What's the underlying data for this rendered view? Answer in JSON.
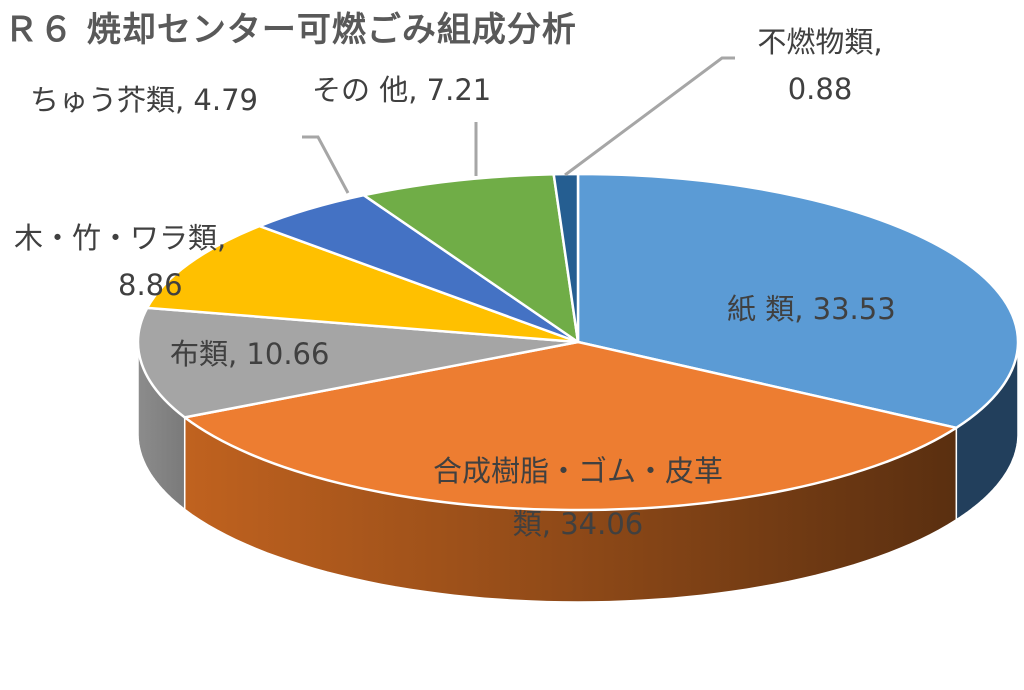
{
  "chart_data": {
    "type": "pie",
    "title": "Ｒ６ 焼却センター可燃ごみ組成分析",
    "style": "3d-pie",
    "start_angle_deg": 0,
    "direction": "clockwise",
    "categories": [
      "紙 類",
      "合成樹脂・ゴム・皮革類",
      "布類",
      "木・竹・ワラ類",
      "ちゅう芥類",
      "その他",
      "不燃物類"
    ],
    "values": [
      33.53,
      34.06,
      10.66,
      8.86,
      4.79,
      7.21,
      0.88
    ],
    "colors": [
      "#5B9BD5",
      "#ED7D31",
      "#A5A5A5",
      "#FFC000",
      "#4472C4",
      "#70AD47",
      "#255E91"
    ],
    "side_colors": [
      "#223F5C",
      "#6B3512",
      "#7F7F7F",
      "#9E7600",
      "#2A4679",
      "#456A2B",
      "#17375A"
    ],
    "data_labels": [
      {
        "line1": "紙 類, 33.53",
        "line2": ""
      },
      {
        "line1": "合成樹脂・ゴム・皮革",
        "line2": "類, 34.06"
      },
      {
        "line1": "布類, 10.66",
        "line2": ""
      },
      {
        "line1": "木・竹・ワラ類,",
        "line2": "8.86"
      },
      {
        "line1": "ちゅう芥類, 4.79",
        "line2": ""
      },
      {
        "line1": "その 他, 7.21",
        "line2": ""
      },
      {
        "line1": "不燃物類,",
        "line2": "0.88"
      }
    ],
    "legend": "none",
    "units": "%"
  }
}
